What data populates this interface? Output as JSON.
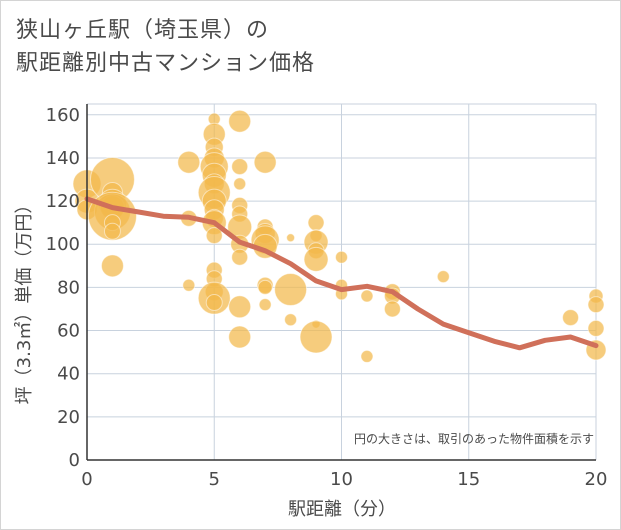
{
  "title_line1": "狭山ヶ丘駅（埼玉県）の",
  "title_line2": "駅距離別中古マンション価格",
  "chart_data": {
    "type": "scatter",
    "xlabel": "駅距離（分）",
    "ylabel": "坪（3.3㎡）単価（万円）",
    "note": "円の大きさは、取引のあった物件面積を示す",
    "xlim": [
      0,
      20
    ],
    "ylim": [
      0,
      165
    ],
    "xticks": [
      0,
      5,
      10,
      15,
      20
    ],
    "yticks": [
      0,
      20,
      40,
      60,
      80,
      100,
      120,
      140,
      160
    ],
    "grid": true,
    "colors": {
      "bubble": "#f2b84b",
      "trend": "#d0705a",
      "grid": "#c8d2de",
      "axis": "#333333"
    },
    "points": [
      {
        "x": 0,
        "y": 128,
        "s": 14
      },
      {
        "x": 0,
        "y": 120,
        "s": 12
      },
      {
        "x": 0,
        "y": 116,
        "s": 10
      },
      {
        "x": 1,
        "y": 130,
        "s": 22
      },
      {
        "x": 1,
        "y": 124,
        "s": 10
      },
      {
        "x": 1,
        "y": 119,
        "s": 14
      },
      {
        "x": 1,
        "y": 117,
        "s": 12
      },
      {
        "x": 1,
        "y": 115,
        "s": 18
      },
      {
        "x": 1,
        "y": 113,
        "s": 24
      },
      {
        "x": 1,
        "y": 110,
        "s": 8
      },
      {
        "x": 1,
        "y": 106,
        "s": 8
      },
      {
        "x": 1,
        "y": 90,
        "s": 11
      },
      {
        "x": 4,
        "y": 138,
        "s": 11
      },
      {
        "x": 4,
        "y": 112,
        "s": 8
      },
      {
        "x": 4,
        "y": 81,
        "s": 6
      },
      {
        "x": 5,
        "y": 158,
        "s": 6
      },
      {
        "x": 5,
        "y": 151,
        "s": 11
      },
      {
        "x": 5,
        "y": 145,
        "s": 9
      },
      {
        "x": 5,
        "y": 140,
        "s": 10
      },
      {
        "x": 5,
        "y": 136,
        "s": 14
      },
      {
        "x": 5,
        "y": 132,
        "s": 12
      },
      {
        "x": 5,
        "y": 128,
        "s": 10
      },
      {
        "x": 5,
        "y": 124,
        "s": 16
      },
      {
        "x": 5,
        "y": 120,
        "s": 12
      },
      {
        "x": 5,
        "y": 116,
        "s": 10
      },
      {
        "x": 5,
        "y": 112,
        "s": 9
      },
      {
        "x": 5,
        "y": 110,
        "s": 12
      },
      {
        "x": 5,
        "y": 104,
        "s": 8
      },
      {
        "x": 5,
        "y": 88,
        "s": 8
      },
      {
        "x": 5,
        "y": 84,
        "s": 8
      },
      {
        "x": 5,
        "y": 78,
        "s": 9
      },
      {
        "x": 5,
        "y": 75,
        "s": 16
      },
      {
        "x": 5,
        "y": 73,
        "s": 8
      },
      {
        "x": 6,
        "y": 157,
        "s": 11
      },
      {
        "x": 6,
        "y": 136,
        "s": 8
      },
      {
        "x": 6,
        "y": 128,
        "s": 6
      },
      {
        "x": 6,
        "y": 118,
        "s": 8
      },
      {
        "x": 6,
        "y": 114,
        "s": 8
      },
      {
        "x": 6,
        "y": 108,
        "s": 12
      },
      {
        "x": 6,
        "y": 100,
        "s": 9
      },
      {
        "x": 6,
        "y": 94,
        "s": 8
      },
      {
        "x": 6,
        "y": 71,
        "s": 11
      },
      {
        "x": 6,
        "y": 57,
        "s": 11
      },
      {
        "x": 7,
        "y": 138,
        "s": 11
      },
      {
        "x": 7,
        "y": 108,
        "s": 8
      },
      {
        "x": 7,
        "y": 105,
        "s": 10
      },
      {
        "x": 7,
        "y": 102,
        "s": 14
      },
      {
        "x": 7,
        "y": 99,
        "s": 12
      },
      {
        "x": 7,
        "y": 81,
        "s": 8
      },
      {
        "x": 7,
        "y": 80,
        "s": 7
      },
      {
        "x": 7,
        "y": 72,
        "s": 6
      },
      {
        "x": 8,
        "y": 103,
        "s": 4
      },
      {
        "x": 8,
        "y": 79,
        "s": 16
      },
      {
        "x": 8,
        "y": 65,
        "s": 6
      },
      {
        "x": 9,
        "y": 110,
        "s": 8
      },
      {
        "x": 9,
        "y": 104,
        "s": 6
      },
      {
        "x": 9,
        "y": 101,
        "s": 12
      },
      {
        "x": 9,
        "y": 97,
        "s": 8
      },
      {
        "x": 9,
        "y": 93,
        "s": 12
      },
      {
        "x": 9,
        "y": 63,
        "s": 4
      },
      {
        "x": 9,
        "y": 57,
        "s": 16
      },
      {
        "x": 10,
        "y": 94,
        "s": 6
      },
      {
        "x": 10,
        "y": 81,
        "s": 6
      },
      {
        "x": 10,
        "y": 77,
        "s": 6
      },
      {
        "x": 11,
        "y": 76,
        "s": 6
      },
      {
        "x": 11,
        "y": 48,
        "s": 6
      },
      {
        "x": 12,
        "y": 78,
        "s": 8
      },
      {
        "x": 12,
        "y": 76,
        "s": 8
      },
      {
        "x": 12,
        "y": 70,
        "s": 8
      },
      {
        "x": 14,
        "y": 85,
        "s": 6
      },
      {
        "x": 19,
        "y": 66,
        "s": 8
      },
      {
        "x": 20,
        "y": 76,
        "s": 7
      },
      {
        "x": 20,
        "y": 72,
        "s": 8
      },
      {
        "x": 20,
        "y": 61,
        "s": 8
      },
      {
        "x": 20,
        "y": 51,
        "s": 10
      }
    ],
    "trend": [
      {
        "x": 0,
        "y": 121
      },
      {
        "x": 1,
        "y": 117
      },
      {
        "x": 2,
        "y": 115
      },
      {
        "x": 3,
        "y": 113
      },
      {
        "x": 4,
        "y": 112.5
      },
      {
        "x": 5,
        "y": 110
      },
      {
        "x": 6,
        "y": 101
      },
      {
        "x": 7,
        "y": 97
      },
      {
        "x": 8,
        "y": 91
      },
      {
        "x": 9,
        "y": 83
      },
      {
        "x": 10,
        "y": 79
      },
      {
        "x": 11,
        "y": 80.5
      },
      {
        "x": 12,
        "y": 78
      },
      {
        "x": 13,
        "y": 70
      },
      {
        "x": 14,
        "y": 63
      },
      {
        "x": 15,
        "y": 59
      },
      {
        "x": 16,
        "y": 55
      },
      {
        "x": 17,
        "y": 52
      },
      {
        "x": 18,
        "y": 55.5
      },
      {
        "x": 19,
        "y": 57
      },
      {
        "x": 20,
        "y": 53
      }
    ]
  }
}
